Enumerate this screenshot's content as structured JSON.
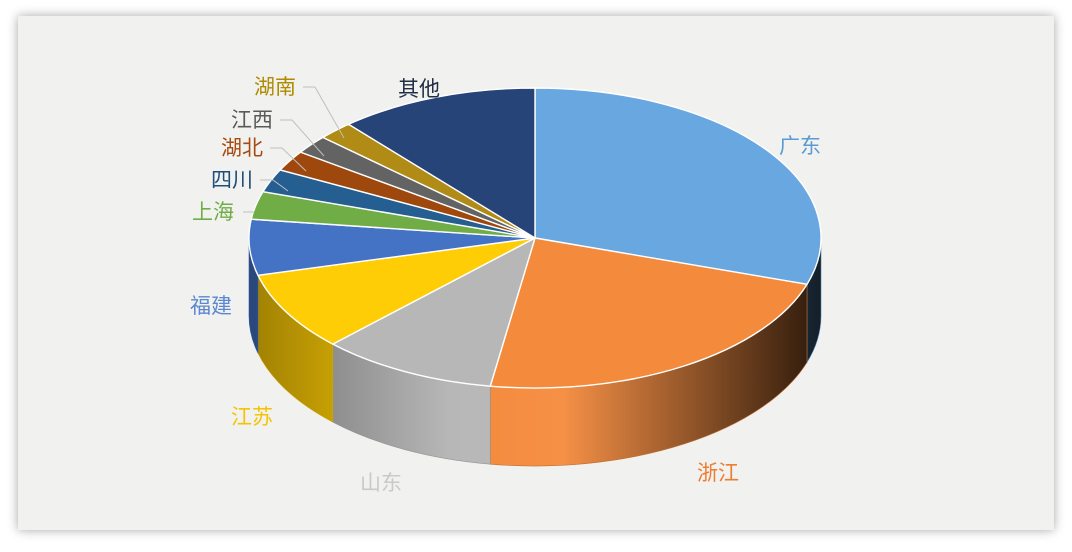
{
  "chart_data": {
    "type": "pie",
    "style": "3d",
    "legend": "none",
    "labels_shown": "category names only (no values printed)",
    "slices": [
      {
        "name": "广东",
        "value": 30.0,
        "color": "#69a7e0",
        "label_color": "#5b9bd5"
      },
      {
        "name": "浙江",
        "value": 22.5,
        "color": "#f48a3c",
        "label_color": "#ed7d31"
      },
      {
        "name": "山东",
        "value": 10.0,
        "color": "#b7b7b7",
        "label_color": "#c9c9c9"
      },
      {
        "name": "江苏",
        "value": 8.5,
        "color": "#ffcd05",
        "label_color": "#f5c400"
      },
      {
        "name": "福建",
        "value": 6.0,
        "color": "#4472c4",
        "label_color": "#5b88cf"
      },
      {
        "name": "上海",
        "value": 3.0,
        "color": "#70ad47",
        "label_color": "#70ad47"
      },
      {
        "name": "四川",
        "value": 2.5,
        "color": "#255e91",
        "label_color": "#1f4e79"
      },
      {
        "name": "湖北",
        "value": 2.2,
        "color": "#9e480e",
        "label_color": "#a64b10"
      },
      {
        "name": "江西",
        "value": 2.0,
        "color": "#636363",
        "label_color": "#5a5a5a"
      },
      {
        "name": "湖南",
        "value": 2.0,
        "color": "#b08b15",
        "label_color": "#b08b00"
      },
      {
        "name": "其他",
        "value": 11.3,
        "color": "#264478",
        "label_color": "#222e44"
      }
    ]
  }
}
